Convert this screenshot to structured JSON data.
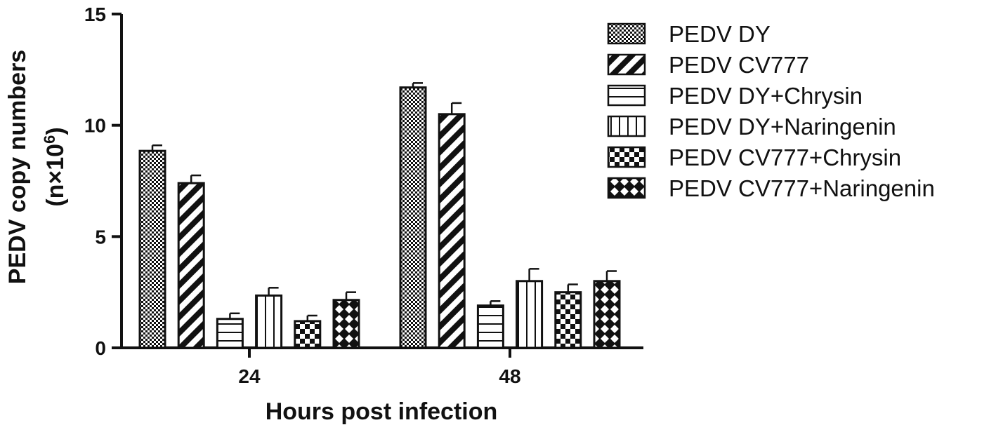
{
  "chart_data": {
    "type": "bar",
    "title": "",
    "xlabel": "Hours post infection",
    "ylabel_line1": "PEDV copy numbers",
    "ylabel_line2_prefix": "(n×10",
    "ylabel_line2_sup": "6",
    "ylabel_line2_suffix": ")",
    "ylim": [
      0,
      15
    ],
    "yticks": [
      "0",
      "5",
      "10",
      "15"
    ],
    "categories": [
      "24",
      "48"
    ],
    "legend_position": "right",
    "series": [
      {
        "name": "PEDV DY",
        "pattern": "checker-fine",
        "values": [
          8.85,
          11.7
        ],
        "errors": [
          0.25,
          0.2
        ]
      },
      {
        "name": "PEDV CV777",
        "pattern": "diagonal",
        "values": [
          7.4,
          10.5
        ],
        "errors": [
          0.35,
          0.5
        ]
      },
      {
        "name": "PEDV DY+Chrysin",
        "pattern": "horizontal",
        "values": [
          1.3,
          1.9
        ],
        "errors": [
          0.25,
          0.2
        ]
      },
      {
        "name": "PEDV DY+Naringenin",
        "pattern": "vertical",
        "values": [
          2.35,
          3.0
        ],
        "errors": [
          0.35,
          0.55
        ]
      },
      {
        "name": "PEDV CV777+Chrysin",
        "pattern": "checker-coarse",
        "values": [
          1.2,
          2.5
        ],
        "errors": [
          0.25,
          0.35
        ]
      },
      {
        "name": "PEDV CV777+Naringenin",
        "pattern": "crosshatch",
        "values": [
          2.15,
          3.0
        ],
        "errors": [
          0.35,
          0.45
        ]
      }
    ]
  }
}
